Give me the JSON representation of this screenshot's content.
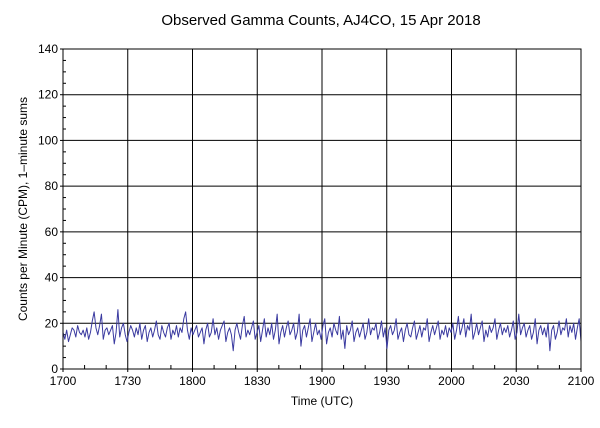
{
  "chart_data": {
    "type": "line",
    "title": "Observed Gamma Counts, AJ4CO, 15 Apr 2018",
    "xlabel": "Time (UTC)",
    "ylabel": "Counts per Minute (CPM), 1–minute sums",
    "x_range": [
      "1700",
      "2100"
    ],
    "ylim": [
      0,
      140
    ],
    "x_ticks": [
      "1700",
      "1730",
      "1800",
      "1830",
      "1900",
      "1930",
      "2000",
      "2030",
      "2100"
    ],
    "y_ticks": [
      0,
      20,
      40,
      60,
      80,
      100,
      120,
      140
    ],
    "grid": true,
    "line_color": "#3a3aa0",
    "series": [
      {
        "values": [
          16,
          13,
          17,
          12,
          15,
          18,
          17,
          14,
          19,
          16,
          15,
          17,
          14,
          18,
          13,
          16,
          21,
          25,
          18,
          15,
          19,
          24,
          13,
          17,
          18,
          15,
          17,
          19,
          11,
          16,
          26,
          14,
          18,
          20,
          15,
          12,
          16,
          19,
          17,
          14,
          18,
          15,
          20,
          13,
          17,
          19,
          12,
          16,
          18,
          14,
          17,
          21,
          15,
          13,
          19,
          16,
          14,
          18,
          20,
          13,
          17,
          15,
          19,
          14,
          18,
          16,
          22,
          25,
          17,
          13,
          18,
          15,
          17,
          19,
          14,
          16,
          18,
          11,
          17,
          20,
          14,
          16,
          22,
          15,
          18,
          13,
          17,
          19,
          21,
          12,
          16,
          18,
          15,
          8,
          17,
          20,
          16,
          13,
          19,
          23,
          14,
          17,
          15,
          18,
          21,
          13,
          16,
          19,
          12,
          17,
          22,
          14,
          18,
          15,
          20,
          13,
          17,
          24,
          11,
          16,
          19,
          14,
          18,
          21,
          15,
          17,
          20,
          13,
          16,
          24,
          10,
          17,
          19,
          14,
          18,
          22,
          12,
          16,
          20,
          15,
          17,
          13,
          19,
          22,
          11,
          16,
          18,
          14,
          20,
          17,
          15,
          23,
          13,
          17,
          9,
          19,
          15,
          17,
          21,
          12,
          16,
          18,
          14,
          17,
          20,
          13,
          16,
          22,
          15,
          18,
          17,
          20,
          13,
          16,
          21,
          14,
          18,
          9,
          17,
          19,
          15,
          17,
          22,
          13,
          16,
          18,
          12,
          17,
          20,
          15,
          14,
          18,
          21,
          13,
          16,
          19,
          14,
          18,
          17,
          22,
          12,
          16,
          19,
          15,
          18,
          21,
          13,
          17,
          15,
          19,
          14,
          18,
          16,
          20,
          13,
          17,
          23,
          15,
          18,
          22,
          14,
          19,
          17,
          24,
          13,
          16,
          20,
          15,
          18,
          21,
          12,
          17,
          14,
          19,
          16,
          18,
          22,
          13,
          17,
          20,
          15,
          18,
          16,
          19,
          14,
          17,
          21,
          13,
          16,
          24,
          15,
          18,
          20,
          14,
          17,
          19,
          13,
          16,
          22,
          11,
          17,
          19,
          15,
          18,
          14,
          20,
          8,
          17,
          19,
          13,
          16,
          21,
          15,
          18,
          17,
          22,
          14,
          19,
          16,
          20,
          13,
          18,
          22,
          12
        ]
      }
    ]
  }
}
